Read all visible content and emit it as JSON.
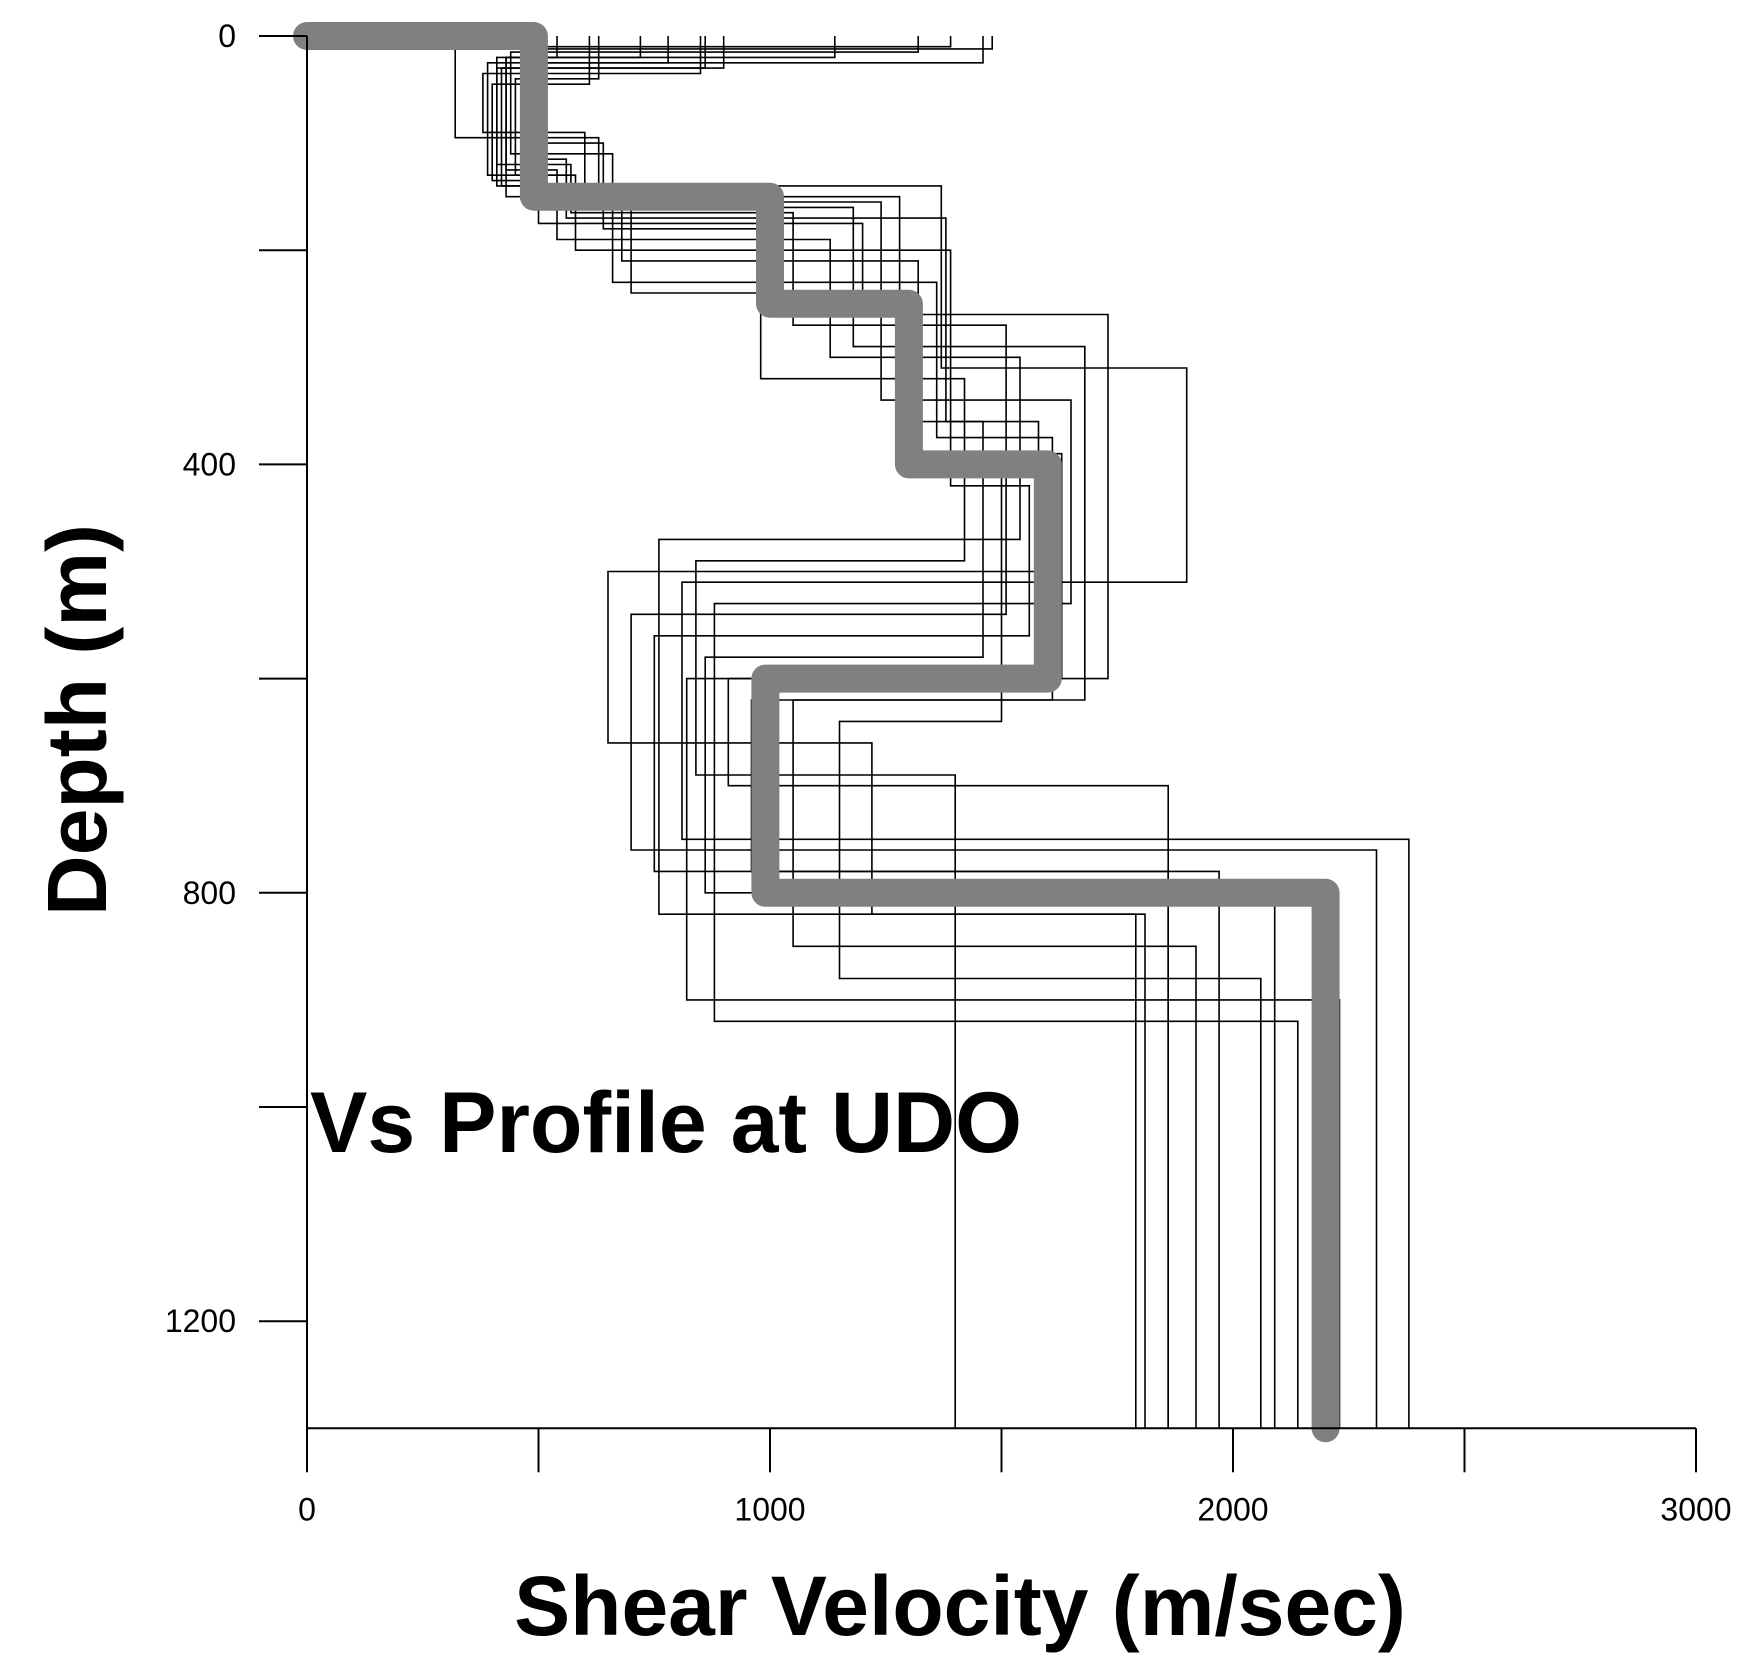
{
  "chart_data": {
    "type": "line",
    "xlabel": "Shear Velocity (m/sec)",
    "ylabel": "Depth (m)",
    "annotation": "Vs Profile at UDO",
    "xlim": [
      0,
      3000
    ],
    "ylim": [
      1300,
      0
    ],
    "y_inverted": true,
    "x_ticks": [
      0,
      500,
      1000,
      1500,
      2000,
      2500,
      3000
    ],
    "x_tick_labels": [
      "0",
      "",
      "1000",
      "",
      "2000",
      "",
      "3000"
    ],
    "y_ticks": [
      0,
      200,
      400,
      600,
      800,
      1000,
      1200
    ],
    "y_tick_labels": [
      "0",
      "",
      "400",
      "",
      "800",
      "",
      "1200"
    ],
    "grid": false,
    "colors": {
      "candidate_profiles": "#000000",
      "mean_profile": "#808080",
      "axes": "#000000"
    },
    "series": [
      {
        "style": "thick-gray",
        "layers": [
          {
            "vs": 0,
            "top": 0,
            "bottom": 0
          },
          {
            "vs": 490,
            "top": 0,
            "bottom": 150
          },
          {
            "vs": 1000,
            "top": 150,
            "bottom": 250
          },
          {
            "vs": 1300,
            "top": 250,
            "bottom": 400
          },
          {
            "vs": 1600,
            "top": 400,
            "bottom": 600
          },
          {
            "vs": 990,
            "top": 600,
            "bottom": 800
          },
          {
            "vs": 2200,
            "top": 800,
            "bottom": 1300
          }
        ]
      },
      {
        "style": "thin",
        "layers": [
          {
            "vs": 1460,
            "top": 0,
            "bottom": 25
          },
          {
            "vs": 390,
            "top": 25,
            "bottom": 130
          },
          {
            "vs": 560,
            "top": 130,
            "bottom": 170
          },
          {
            "vs": 1380,
            "top": 170,
            "bottom": 360
          },
          {
            "vs": 1580,
            "top": 360,
            "bottom": 500
          },
          {
            "vs": 650,
            "top": 500,
            "bottom": 660
          },
          {
            "vs": 1220,
            "top": 660,
            "bottom": 820
          },
          {
            "vs": 1810,
            "top": 820,
            "bottom": 1300
          }
        ]
      },
      {
        "style": "thin",
        "layers": [
          {
            "vs": 1390,
            "top": 0,
            "bottom": 10
          },
          {
            "vs": 320,
            "top": 10,
            "bottom": 95
          },
          {
            "vs": 630,
            "top": 95,
            "bottom": 140
          },
          {
            "vs": 1370,
            "top": 140,
            "bottom": 310
          },
          {
            "vs": 1900,
            "top": 310,
            "bottom": 510
          },
          {
            "vs": 810,
            "top": 510,
            "bottom": 750
          },
          {
            "vs": 2380,
            "top": 750,
            "bottom": 1300
          }
        ]
      },
      {
        "style": "thin",
        "layers": [
          {
            "vs": 1320,
            "top": 0,
            "bottom": 15
          },
          {
            "vs": 440,
            "top": 15,
            "bottom": 110
          },
          {
            "vs": 660,
            "top": 110,
            "bottom": 160
          },
          {
            "vs": 1180,
            "top": 160,
            "bottom": 290
          },
          {
            "vs": 1680,
            "top": 290,
            "bottom": 620
          },
          {
            "vs": 960,
            "top": 620,
            "bottom": 780
          },
          {
            "vs": 1860,
            "top": 780,
            "bottom": 1300
          }
        ]
      },
      {
        "style": "thin",
        "layers": [
          {
            "vs": 1140,
            "top": 0,
            "bottom": 20
          },
          {
            "vs": 410,
            "top": 20,
            "bottom": 120
          },
          {
            "vs": 570,
            "top": 120,
            "bottom": 165
          },
          {
            "vs": 1050,
            "top": 165,
            "bottom": 270
          },
          {
            "vs": 1510,
            "top": 270,
            "bottom": 540
          },
          {
            "vs": 700,
            "top": 540,
            "bottom": 760
          },
          {
            "vs": 2310,
            "top": 760,
            "bottom": 1300
          }
        ]
      },
      {
        "style": "thin",
        "layers": [
          {
            "vs": 860,
            "top": 0,
            "bottom": 30
          },
          {
            "vs": 420,
            "top": 30,
            "bottom": 140
          },
          {
            "vs": 700,
            "top": 140,
            "bottom": 240
          },
          {
            "vs": 1320,
            "top": 240,
            "bottom": 390
          },
          {
            "vs": 1630,
            "top": 390,
            "bottom": 600
          },
          {
            "vs": 910,
            "top": 600,
            "bottom": 700
          },
          {
            "vs": 1860,
            "top": 700,
            "bottom": 1300
          }
        ]
      },
      {
        "style": "thin",
        "layers": [
          {
            "vs": 850,
            "top": 0,
            "bottom": 35
          },
          {
            "vs": 380,
            "top": 35,
            "bottom": 90
          },
          {
            "vs": 600,
            "top": 90,
            "bottom": 150
          },
          {
            "vs": 1280,
            "top": 150,
            "bottom": 360
          },
          {
            "vs": 1460,
            "top": 360,
            "bottom": 580
          },
          {
            "vs": 860,
            "top": 580,
            "bottom": 800
          },
          {
            "vs": 2090,
            "top": 800,
            "bottom": 1300
          }
        ]
      },
      {
        "style": "thin",
        "layers": [
          {
            "vs": 630,
            "top": 0,
            "bottom": 40
          },
          {
            "vs": 450,
            "top": 40,
            "bottom": 130
          },
          {
            "vs": 580,
            "top": 130,
            "bottom": 200
          },
          {
            "vs": 1390,
            "top": 200,
            "bottom": 420
          },
          {
            "vs": 1560,
            "top": 420,
            "bottom": 560
          },
          {
            "vs": 750,
            "top": 560,
            "bottom": 780
          },
          {
            "vs": 1970,
            "top": 780,
            "bottom": 1300
          }
        ]
      },
      {
        "style": "thin",
        "layers": [
          {
            "vs": 540,
            "top": 0,
            "bottom": 20
          },
          {
            "vs": 430,
            "top": 20,
            "bottom": 125
          },
          {
            "vs": 540,
            "top": 125,
            "bottom": 190
          },
          {
            "vs": 1130,
            "top": 190,
            "bottom": 300
          },
          {
            "vs": 1540,
            "top": 300,
            "bottom": 470
          },
          {
            "vs": 760,
            "top": 470,
            "bottom": 820
          },
          {
            "vs": 1790,
            "top": 820,
            "bottom": 1300
          }
        ]
      },
      {
        "style": "thin",
        "layers": [
          {
            "vs": 780,
            "top": 0,
            "bottom": 25
          },
          {
            "vs": 470,
            "top": 25,
            "bottom": 115
          },
          {
            "vs": 560,
            "top": 115,
            "bottom": 155
          },
          {
            "vs": 1240,
            "top": 155,
            "bottom": 340
          },
          {
            "vs": 1650,
            "top": 340,
            "bottom": 530
          },
          {
            "vs": 880,
            "top": 530,
            "bottom": 920
          },
          {
            "vs": 2140,
            "top": 920,
            "bottom": 1300
          }
        ]
      },
      {
        "style": "thin",
        "layers": [
          {
            "vs": 900,
            "top": 0,
            "bottom": 30
          },
          {
            "vs": 410,
            "top": 30,
            "bottom": 140
          },
          {
            "vs": 660,
            "top": 140,
            "bottom": 230
          },
          {
            "vs": 1360,
            "top": 230,
            "bottom": 375
          },
          {
            "vs": 1610,
            "top": 375,
            "bottom": 620
          },
          {
            "vs": 1050,
            "top": 620,
            "bottom": 850
          },
          {
            "vs": 1920,
            "top": 850,
            "bottom": 1300
          }
        ]
      },
      {
        "style": "thin",
        "layers": [
          {
            "vs": 1480,
            "top": 0,
            "bottom": 12
          },
          {
            "vs": 470,
            "top": 12,
            "bottom": 100
          },
          {
            "vs": 640,
            "top": 100,
            "bottom": 180
          },
          {
            "vs": 980,
            "top": 180,
            "bottom": 320
          },
          {
            "vs": 1420,
            "top": 320,
            "bottom": 490
          },
          {
            "vs": 840,
            "top": 490,
            "bottom": 690
          },
          {
            "vs": 1400,
            "top": 690,
            "bottom": 1300
          }
        ]
      },
      {
        "style": "thin",
        "layers": [
          {
            "vs": 610,
            "top": 0,
            "bottom": 45
          },
          {
            "vs": 400,
            "top": 45,
            "bottom": 135
          },
          {
            "vs": 500,
            "top": 135,
            "bottom": 175
          },
          {
            "vs": 1200,
            "top": 175,
            "bottom": 260
          },
          {
            "vs": 1730,
            "top": 260,
            "bottom": 600
          },
          {
            "vs": 820,
            "top": 600,
            "bottom": 900
          },
          {
            "vs": 2230,
            "top": 900,
            "bottom": 1300
          }
        ]
      },
      {
        "style": "thin",
        "layers": [
          {
            "vs": 720,
            "top": 0,
            "bottom": 20
          },
          {
            "vs": 430,
            "top": 20,
            "bottom": 150
          },
          {
            "vs": 680,
            "top": 150,
            "bottom": 210
          },
          {
            "vs": 1320,
            "top": 210,
            "bottom": 390
          },
          {
            "vs": 1500,
            "top": 390,
            "bottom": 640
          },
          {
            "vs": 1150,
            "top": 640,
            "bottom": 880
          },
          {
            "vs": 2060,
            "top": 880,
            "bottom": 1300
          }
        ]
      }
    ]
  }
}
